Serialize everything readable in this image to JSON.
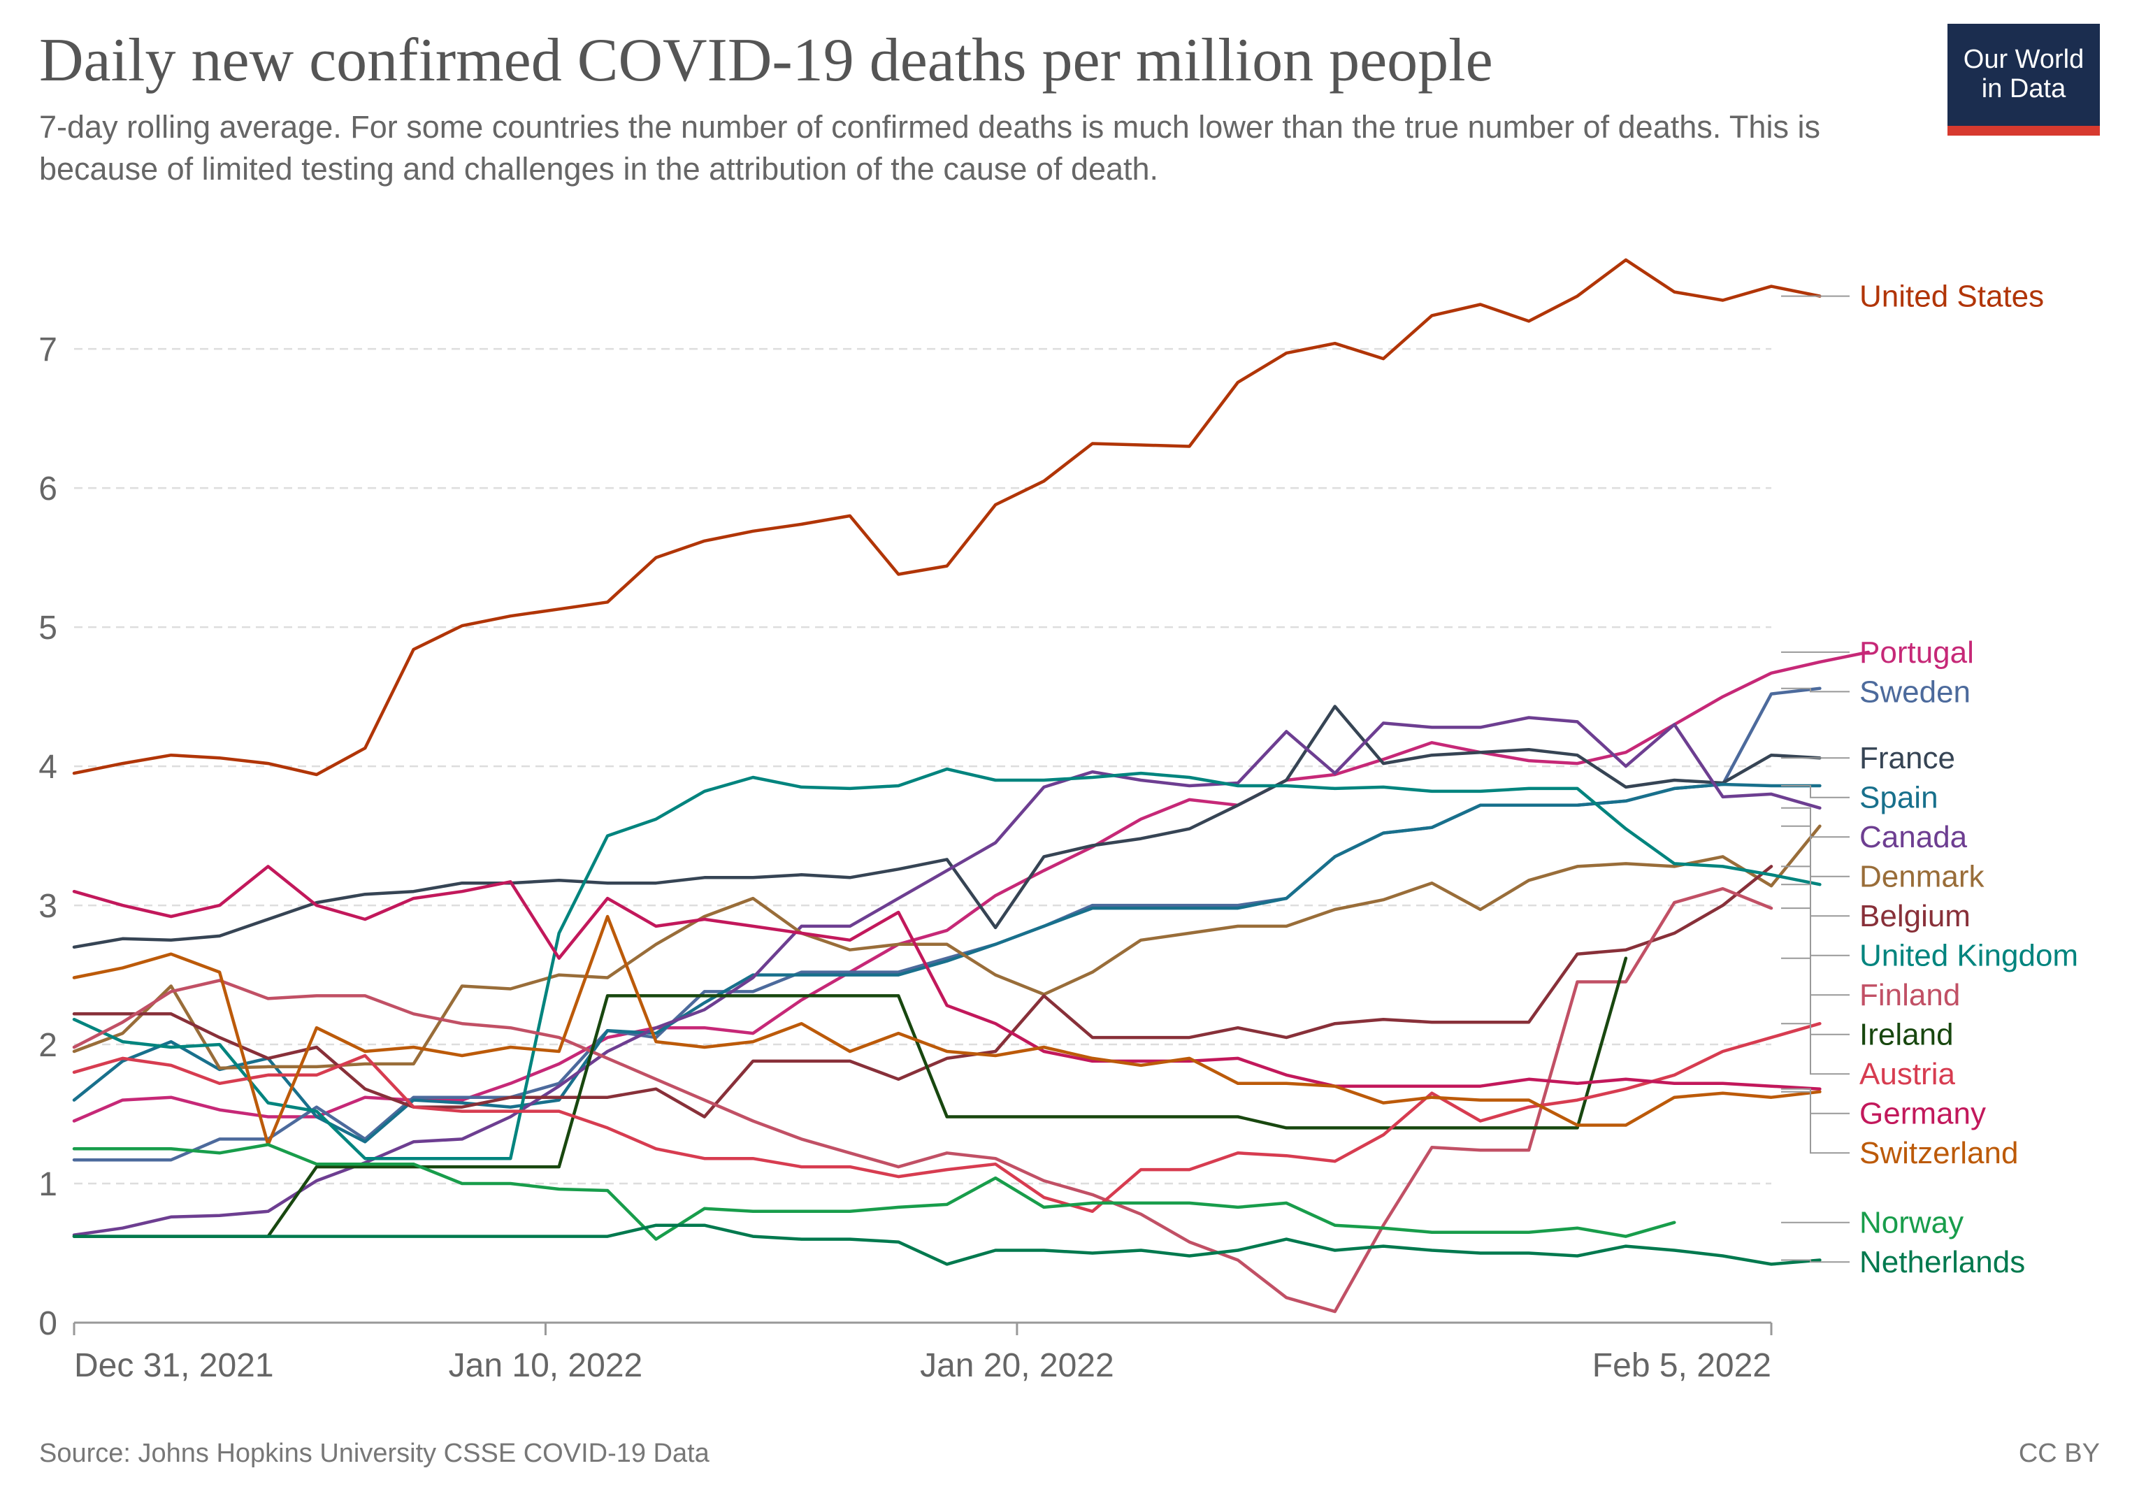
{
  "header": {
    "title": "Daily new confirmed COVID-19 deaths per million people",
    "subtitle": "7-day rolling average. For some countries the number of confirmed deaths is much lower than the true number of deaths. This is because of limited testing and challenges in the attribution of the cause of death.",
    "logo_line1": "Our World",
    "logo_line2": "in Data"
  },
  "footer": {
    "source": "Source: Johns Hopkins University CSSE COVID-19 Data",
    "license": "CC BY"
  },
  "colors": {
    "grid": "#dddddd",
    "axis": "#999999",
    "logo_bg": "#1b2d4f",
    "logo_bar": "#d73a2f"
  },
  "chart_data": {
    "type": "line",
    "title": "Daily new confirmed COVID-19 deaths per million people",
    "xlabel": "",
    "ylabel": "",
    "x_start": "2021-12-31",
    "x_end": "2022-02-05",
    "xlim": [
      "2021-12-31",
      "2022-02-05"
    ],
    "ylim": [
      0,
      7.8
    ],
    "yticks": [
      0,
      1,
      2,
      3,
      4,
      5,
      6,
      7
    ],
    "xticks": [
      {
        "date": "2021-12-31",
        "label": "Dec 31, 2021"
      },
      {
        "date": "2022-01-10",
        "label": "Jan 10, 2022"
      },
      {
        "date": "2022-01-20",
        "label": "Jan 20, 2022"
      },
      {
        "date": "2022-02-05",
        "label": "Feb 5, 2022"
      }
    ],
    "grid": true,
    "legend": "right",
    "series": [
      {
        "name": "United States",
        "color": "#b13507",
        "label_y": 7.38,
        "values": [
          3.95,
          4.02,
          4.08,
          4.06,
          4.02,
          3.94,
          4.13,
          4.84,
          5.01,
          5.08,
          5.13,
          5.18,
          5.5,
          5.62,
          5.69,
          5.74,
          5.8,
          5.38,
          5.44,
          5.88,
          6.05,
          6.32,
          6.31,
          6.3,
          6.76,
          6.97,
          7.04,
          6.93,
          7.24,
          7.32,
          7.2,
          7.38,
          7.64,
          7.41,
          7.35,
          7.45,
          7.38
        ]
      },
      {
        "name": "Portugal",
        "color": "#c62877",
        "label_y": 4.82,
        "values": [
          1.45,
          1.6,
          1.62,
          1.53,
          1.48,
          1.48,
          1.62,
          1.6,
          1.6,
          1.72,
          1.86,
          2.05,
          2.12,
          2.12,
          2.08,
          2.32,
          2.52,
          2.72,
          2.82,
          3.07,
          3.25,
          3.42,
          3.62,
          3.76,
          3.72,
          3.9,
          3.94,
          4.05,
          4.17,
          4.1,
          4.04,
          4.02,
          4.1,
          4.3,
          4.5,
          4.67,
          4.75,
          4.82
        ]
      },
      {
        "name": "Sweden",
        "color": "#4c6a9c",
        "label_y": 4.55,
        "values": [
          1.17,
          1.17,
          1.17,
          1.32,
          1.32,
          1.55,
          1.32,
          1.62,
          1.62,
          1.62,
          1.72,
          2.1,
          2.05,
          2.38,
          2.38,
          2.52,
          2.52,
          2.52,
          2.62,
          2.72,
          2.85,
          3.0,
          3.0,
          3.0,
          3.0,
          3.05,
          3.35,
          3.52,
          3.56,
          3.72,
          3.72,
          3.72,
          3.75,
          3.84,
          3.87,
          4.52,
          4.56
        ]
      },
      {
        "name": "France",
        "color": "#364454",
        "label_y": 4.06,
        "values": [
          2.7,
          2.76,
          2.75,
          2.78,
          2.9,
          3.02,
          3.08,
          3.1,
          3.16,
          3.16,
          3.18,
          3.16,
          3.16,
          3.2,
          3.2,
          3.22,
          3.2,
          3.26,
          3.33,
          2.84,
          3.35,
          3.43,
          3.48,
          3.55,
          3.72,
          3.9,
          4.43,
          4.02,
          4.08,
          4.1,
          4.12,
          4.08,
          3.85,
          3.9,
          3.88,
          4.08,
          4.06
        ]
      },
      {
        "name": "Spain",
        "color": "#18708c",
        "label_y": 3.86,
        "values": [
          1.6,
          1.88,
          2.02,
          1.82,
          1.9,
          1.48,
          1.3,
          1.6,
          1.58,
          1.55,
          1.6,
          2.1,
          2.08,
          2.3,
          2.5,
          2.5,
          2.5,
          2.5,
          2.6,
          2.72,
          2.85,
          2.98,
          2.98,
          2.98,
          2.98,
          3.05,
          3.35,
          3.52,
          3.56,
          3.72,
          3.72,
          3.72,
          3.75,
          3.84,
          3.87,
          3.86,
          3.86
        ]
      },
      {
        "name": "Canada",
        "color": "#6d3e91",
        "label_y": 3.7,
        "values": [
          0.63,
          0.68,
          0.76,
          0.77,
          0.8,
          1.02,
          1.15,
          1.3,
          1.32,
          1.48,
          1.7,
          1.95,
          2.12,
          2.25,
          2.48,
          2.85,
          2.85,
          3.05,
          3.25,
          3.45,
          3.85,
          3.96,
          3.9,
          3.86,
          3.88,
          4.25,
          3.95,
          4.31,
          4.28,
          4.28,
          4.35,
          4.32,
          4.0,
          4.3,
          3.78,
          3.8,
          3.7
        ]
      },
      {
        "name": "Denmark",
        "color": "#996d39",
        "label_y": 3.57,
        "values": [
          1.95,
          2.08,
          2.42,
          1.83,
          1.84,
          1.84,
          1.86,
          1.86,
          2.42,
          2.4,
          2.5,
          2.48,
          2.72,
          2.92,
          3.05,
          2.8,
          2.68,
          2.72,
          2.72,
          2.5,
          2.36,
          2.52,
          2.75,
          2.8,
          2.85,
          2.85,
          2.97,
          3.04,
          3.16,
          2.97,
          3.18,
          3.28,
          3.3,
          3.28,
          3.35,
          3.14,
          3.57
        ]
      },
      {
        "name": "Belgium",
        "color": "#883039",
        "label_y": 3.28,
        "values": [
          2.22,
          2.22,
          2.22,
          2.05,
          1.9,
          1.98,
          1.68,
          1.55,
          1.55,
          1.62,
          1.62,
          1.62,
          1.68,
          1.48,
          1.88,
          1.88,
          1.88,
          1.75,
          1.9,
          1.95,
          2.35,
          2.05,
          2.05,
          2.05,
          2.12,
          2.05,
          2.15,
          2.18,
          2.16,
          2.16,
          2.16,
          2.65,
          2.68,
          2.8,
          3.0,
          3.28
        ]
      },
      {
        "name": "United Kingdom",
        "color": "#00847e",
        "label_y": 3.15,
        "values": [
          2.18,
          2.02,
          1.98,
          2.0,
          1.58,
          1.52,
          1.18,
          1.18,
          1.18,
          1.18,
          2.8,
          3.5,
          3.62,
          3.82,
          3.92,
          3.85,
          3.84,
          3.86,
          3.98,
          3.9,
          3.9,
          3.92,
          3.95,
          3.92,
          3.86,
          3.86,
          3.84,
          3.85,
          3.82,
          3.82,
          3.84,
          3.84,
          3.55,
          3.3,
          3.28,
          3.22,
          3.15
        ]
      },
      {
        "name": "Finland",
        "color": "#c15065",
        "label_y": 2.98,
        "values": [
          1.98,
          2.16,
          2.38,
          2.46,
          2.33,
          2.35,
          2.35,
          2.22,
          2.15,
          2.12,
          2.05,
          1.9,
          1.75,
          1.6,
          1.45,
          1.32,
          1.22,
          1.12,
          1.22,
          1.18,
          1.02,
          0.92,
          0.78,
          0.58,
          0.45,
          0.18,
          0.08,
          0.7,
          1.26,
          1.24,
          1.24,
          2.45,
          2.45,
          3.02,
          3.12,
          2.98
        ]
      },
      {
        "name": "Ireland",
        "color": "#18470f",
        "label_y": 2.62,
        "values": [
          0.62,
          0.62,
          0.62,
          0.62,
          0.62,
          1.12,
          1.12,
          1.12,
          1.12,
          1.12,
          1.12,
          2.35,
          2.35,
          2.35,
          2.35,
          2.35,
          2.35,
          2.35,
          1.48,
          1.48,
          1.48,
          1.48,
          1.48,
          1.48,
          1.48,
          1.4,
          1.4,
          1.4,
          1.4,
          1.4,
          1.4,
          1.4,
          2.62
        ]
      },
      {
        "name": "Austria",
        "color": "#d73c50",
        "label_y": 2.15,
        "values": [
          1.8,
          1.9,
          1.85,
          1.72,
          1.78,
          1.78,
          1.92,
          1.55,
          1.52,
          1.52,
          1.52,
          1.4,
          1.25,
          1.18,
          1.18,
          1.12,
          1.12,
          1.05,
          1.1,
          1.14,
          0.9,
          0.8,
          1.1,
          1.1,
          1.22,
          1.2,
          1.16,
          1.35,
          1.65,
          1.45,
          1.55,
          1.6,
          1.68,
          1.78,
          1.95,
          2.05,
          2.15
        ]
      },
      {
        "name": "Germany",
        "color": "#c2185b",
        "label_y": 1.68,
        "values": [
          3.1,
          3.0,
          2.92,
          3.0,
          3.28,
          3.0,
          2.9,
          3.05,
          3.1,
          3.17,
          2.62,
          3.05,
          2.85,
          2.9,
          2.85,
          2.8,
          2.75,
          2.95,
          2.28,
          2.15,
          1.95,
          1.88,
          1.88,
          1.88,
          1.9,
          1.78,
          1.7,
          1.7,
          1.7,
          1.7,
          1.75,
          1.72,
          1.75,
          1.72,
          1.72,
          1.7,
          1.68
        ]
      },
      {
        "name": "Switzerland",
        "color": "#bc5a09",
        "label_y": 1.66,
        "values": [
          2.48,
          2.55,
          2.65,
          2.52,
          1.28,
          2.12,
          1.95,
          1.98,
          1.92,
          1.98,
          1.95,
          2.92,
          2.02,
          1.98,
          2.02,
          2.15,
          1.95,
          2.08,
          1.95,
          1.92,
          1.98,
          1.9,
          1.85,
          1.9,
          1.72,
          1.72,
          1.7,
          1.58,
          1.62,
          1.6,
          1.6,
          1.42,
          1.42,
          1.62,
          1.65,
          1.62,
          1.66
        ]
      },
      {
        "name": "Norway",
        "color": "#189d4b",
        "label_y": 0.72,
        "values": [
          1.25,
          1.25,
          1.25,
          1.22,
          1.28,
          1.14,
          1.14,
          1.14,
          1.0,
          1.0,
          0.96,
          0.95,
          0.6,
          0.82,
          0.8,
          0.8,
          0.8,
          0.83,
          0.85,
          1.04,
          0.83,
          0.86,
          0.86,
          0.86,
          0.83,
          0.86,
          0.7,
          0.68,
          0.65,
          0.65,
          0.65,
          0.68,
          0.62,
          0.72
        ]
      },
      {
        "name": "Netherlands",
        "color": "#00794e",
        "label_y": 0.45,
        "values": [
          0.62,
          0.62,
          0.62,
          0.62,
          0.62,
          0.62,
          0.62,
          0.62,
          0.62,
          0.62,
          0.62,
          0.62,
          0.7,
          0.7,
          0.62,
          0.6,
          0.6,
          0.58,
          0.42,
          0.52,
          0.52,
          0.5,
          0.52,
          0.48,
          0.52,
          0.6,
          0.52,
          0.55,
          0.52,
          0.5,
          0.5,
          0.48,
          0.55,
          0.52,
          0.48,
          0.42,
          0.45
        ]
      }
    ]
  }
}
